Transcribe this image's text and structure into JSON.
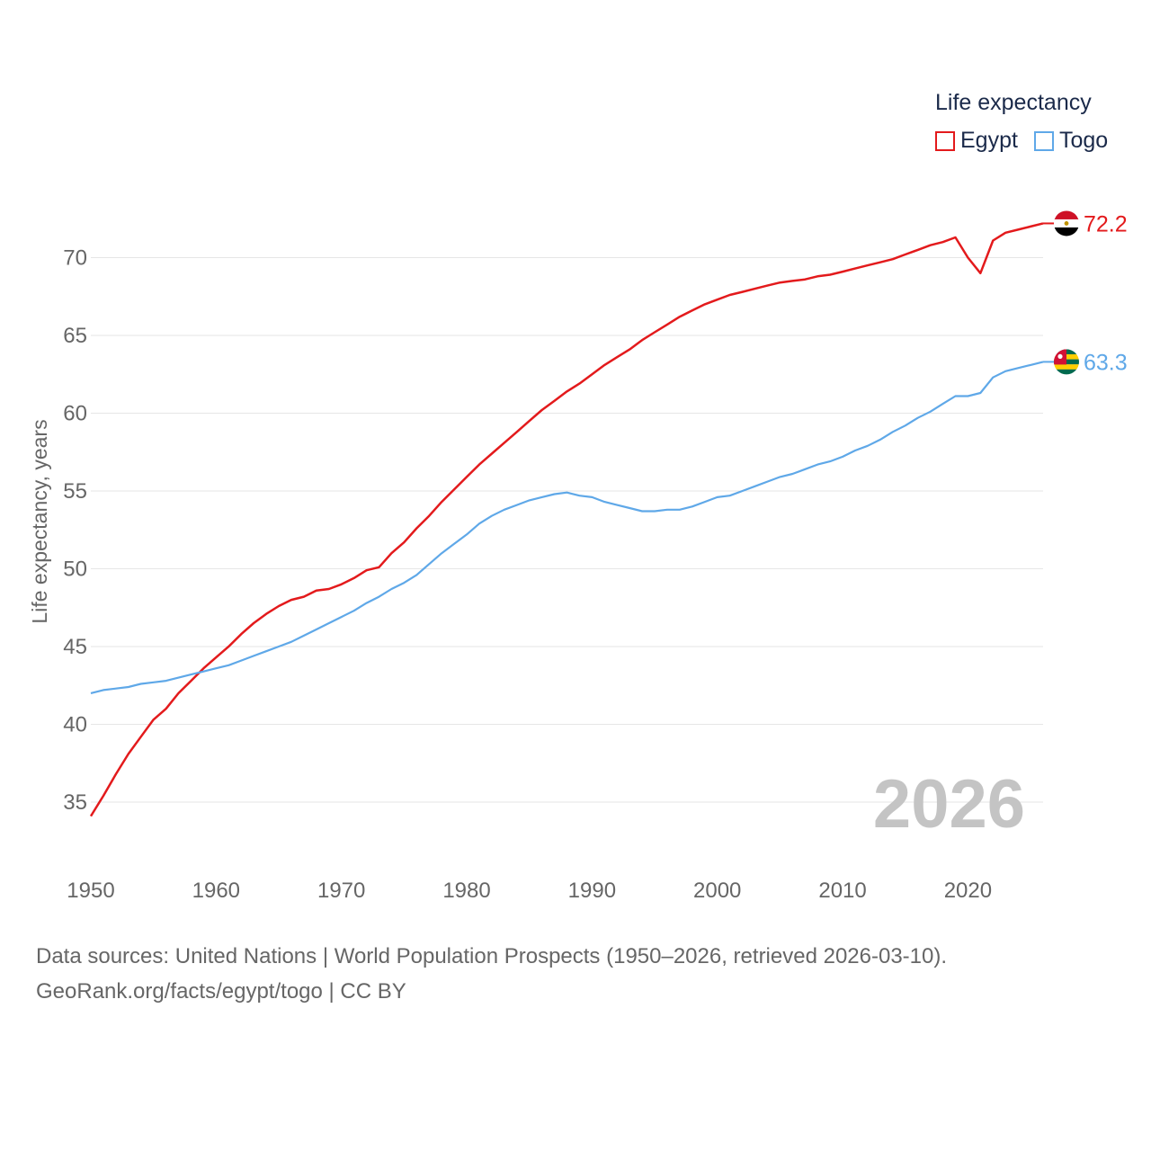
{
  "colors": {
    "egypt": "#e31a1c",
    "togo": "#5fa8e8",
    "grid": "#e6e6e6",
    "axis_text": "#666666",
    "year_watermark": "#c4c4c4"
  },
  "legend": {
    "title": "Life expectancy",
    "items": [
      {
        "label": "Egypt",
        "icon": "square-outline-icon"
      },
      {
        "label": "Togo",
        "icon": "square-outline-icon"
      }
    ]
  },
  "year_label": "2026",
  "source": {
    "line1": "Data sources: United Nations | World Population Prospects (1950–2026, retrieved 2026-03-10).",
    "line2": "GeoRank.org/facts/egypt/togo | CC BY"
  },
  "chart_data": {
    "type": "line",
    "title": "Life expectancy",
    "xlabel": "",
    "ylabel": "Life expectancy, years",
    "xlim": [
      1950,
      2026
    ],
    "ylim": [
      33,
      73
    ],
    "x_ticks": [
      1950,
      1960,
      1970,
      1980,
      1990,
      2000,
      2010,
      2020
    ],
    "y_ticks": [
      35,
      40,
      45,
      50,
      55,
      60,
      65,
      70
    ],
    "grid": true,
    "legend_position": "top-right",
    "x": [
      1950,
      1951,
      1952,
      1953,
      1954,
      1955,
      1956,
      1957,
      1958,
      1959,
      1960,
      1961,
      1962,
      1963,
      1964,
      1965,
      1966,
      1967,
      1968,
      1969,
      1970,
      1971,
      1972,
      1973,
      1974,
      1975,
      1976,
      1977,
      1978,
      1979,
      1980,
      1981,
      1982,
      1983,
      1984,
      1985,
      1986,
      1987,
      1988,
      1989,
      1990,
      1991,
      1992,
      1993,
      1994,
      1995,
      1996,
      1997,
      1998,
      1999,
      2000,
      2001,
      2002,
      2003,
      2004,
      2005,
      2006,
      2007,
      2008,
      2009,
      2010,
      2011,
      2012,
      2013,
      2014,
      2015,
      2016,
      2017,
      2018,
      2019,
      2020,
      2021,
      2022,
      2023,
      2024,
      2025,
      2026
    ],
    "series": [
      {
        "name": "Egypt",
        "end_label": "72.2",
        "flag": "egypt-flag-icon",
        "values": [
          34.1,
          35.4,
          36.8,
          38.1,
          39.2,
          40.3,
          41.0,
          42.0,
          42.8,
          43.6,
          44.3,
          45.0,
          45.8,
          46.5,
          47.1,
          47.6,
          48.0,
          48.2,
          48.6,
          48.7,
          49.0,
          49.4,
          49.9,
          50.1,
          51.0,
          51.7,
          52.6,
          53.4,
          54.3,
          55.1,
          55.9,
          56.7,
          57.4,
          58.1,
          58.8,
          59.5,
          60.2,
          60.8,
          61.4,
          61.9,
          62.5,
          63.1,
          63.6,
          64.1,
          64.7,
          65.2,
          65.7,
          66.2,
          66.6,
          67.0,
          67.3,
          67.6,
          67.8,
          68.0,
          68.2,
          68.4,
          68.5,
          68.6,
          68.8,
          68.9,
          69.1,
          69.3,
          69.5,
          69.7,
          69.9,
          70.2,
          70.5,
          70.8,
          71.0,
          71.3,
          70.0,
          69.0,
          71.1,
          71.6,
          71.8,
          72.0,
          72.2
        ]
      },
      {
        "name": "Togo",
        "end_label": "63.3",
        "flag": "togo-flag-icon",
        "values": [
          42.0,
          42.2,
          42.3,
          42.4,
          42.6,
          42.7,
          42.8,
          43.0,
          43.2,
          43.4,
          43.6,
          43.8,
          44.1,
          44.4,
          44.7,
          45.0,
          45.3,
          45.7,
          46.1,
          46.5,
          46.9,
          47.3,
          47.8,
          48.2,
          48.7,
          49.1,
          49.6,
          50.3,
          51.0,
          51.6,
          52.2,
          52.9,
          53.4,
          53.8,
          54.1,
          54.4,
          54.6,
          54.8,
          54.9,
          54.7,
          54.6,
          54.3,
          54.1,
          53.9,
          53.7,
          53.7,
          53.8,
          53.8,
          54.0,
          54.3,
          54.6,
          54.7,
          55.0,
          55.3,
          55.6,
          55.9,
          56.1,
          56.4,
          56.7,
          56.9,
          57.2,
          57.6,
          57.9,
          58.3,
          58.8,
          59.2,
          59.7,
          60.1,
          60.6,
          61.1,
          61.1,
          61.3,
          62.3,
          62.7,
          62.9,
          63.1,
          63.3
        ]
      }
    ]
  }
}
